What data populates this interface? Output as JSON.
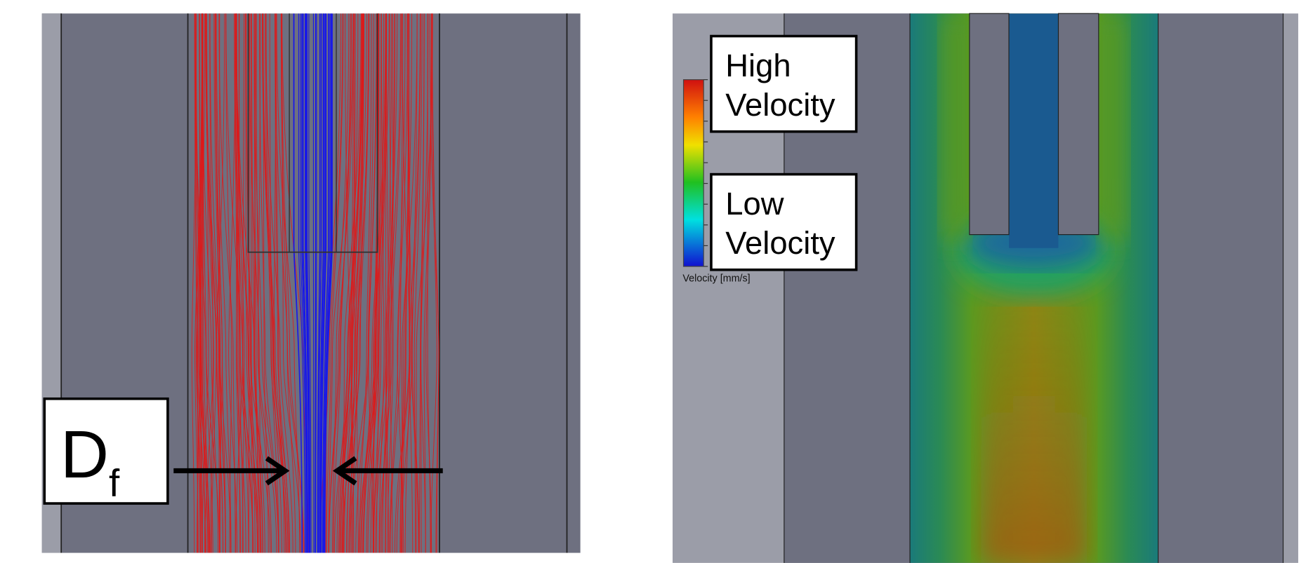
{
  "left_panel": {
    "label": {
      "text": "D",
      "subscript": "f"
    }
  },
  "right_panel": {
    "high_label": [
      "High",
      "Velocity"
    ],
    "low_label": [
      "Low",
      "Velocity"
    ],
    "colorbar_title": "Velocity [mm/s]"
  }
}
